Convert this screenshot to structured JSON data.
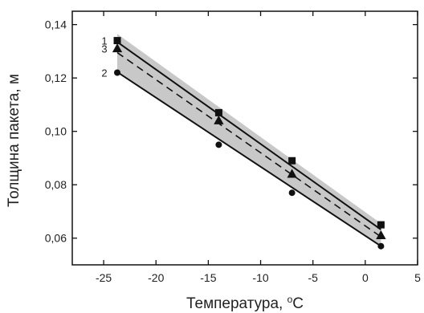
{
  "chart_data": {
    "type": "scatter",
    "xlabel": "Температура, ",
    "xlabel_sup": "o",
    "xlabel_unit": "C",
    "ylabel": "Толщина пакета, м",
    "xlim": [
      -28,
      5
    ],
    "ylim": [
      0.05,
      0.145
    ],
    "xticks": [
      -25,
      -20,
      -15,
      -10,
      -5,
      0,
      5
    ],
    "xtick_labels": [
      "-25",
      "-20",
      "-15",
      "-10",
      "-5",
      "0",
      "5"
    ],
    "yticks": [
      0.06,
      0.08,
      0.1,
      0.12,
      0.14
    ],
    "ytick_labels": [
      "0,06",
      "0,08",
      "0,10",
      "0,12",
      "0,14"
    ],
    "grid": false,
    "band": {
      "color": "#c8c8c8",
      "upper": [
        [
          -23.7,
          0.1365
        ],
        [
          1.5,
          0.0655
        ]
      ],
      "lower": [
        [
          -23.7,
          0.1222
        ],
        [
          1.5,
          0.057
        ]
      ]
    },
    "series": [
      {
        "name": "1",
        "marker": "square",
        "line": "solid",
        "color": "#111111",
        "x": [
          -23.7,
          -14,
          -7,
          1.5
        ],
        "y": [
          0.134,
          0.107,
          0.089,
          0.065
        ],
        "fit": [
          [
            -23.7,
            0.1335
          ],
          [
            1.5,
            0.0632
          ]
        ]
      },
      {
        "name": "2",
        "marker": "circle",
        "line": "solid",
        "color": "#111111",
        "x": [
          -23.7,
          -14,
          -7,
          1.5
        ],
        "y": [
          0.122,
          0.095,
          0.077,
          0.057
        ],
        "fit": [
          [
            -23.7,
            0.1222
          ],
          [
            1.5,
            0.057
          ]
        ]
      },
      {
        "name": "3",
        "marker": "triangle",
        "line": "dashed",
        "color": "#111111",
        "x": [
          -23.7,
          -14,
          -7,
          1.5
        ],
        "y": [
          0.131,
          0.104,
          0.084,
          0.061
        ],
        "fit": [
          [
            -23.7,
            0.1295
          ],
          [
            1.5,
            0.0605
          ]
        ]
      }
    ]
  }
}
